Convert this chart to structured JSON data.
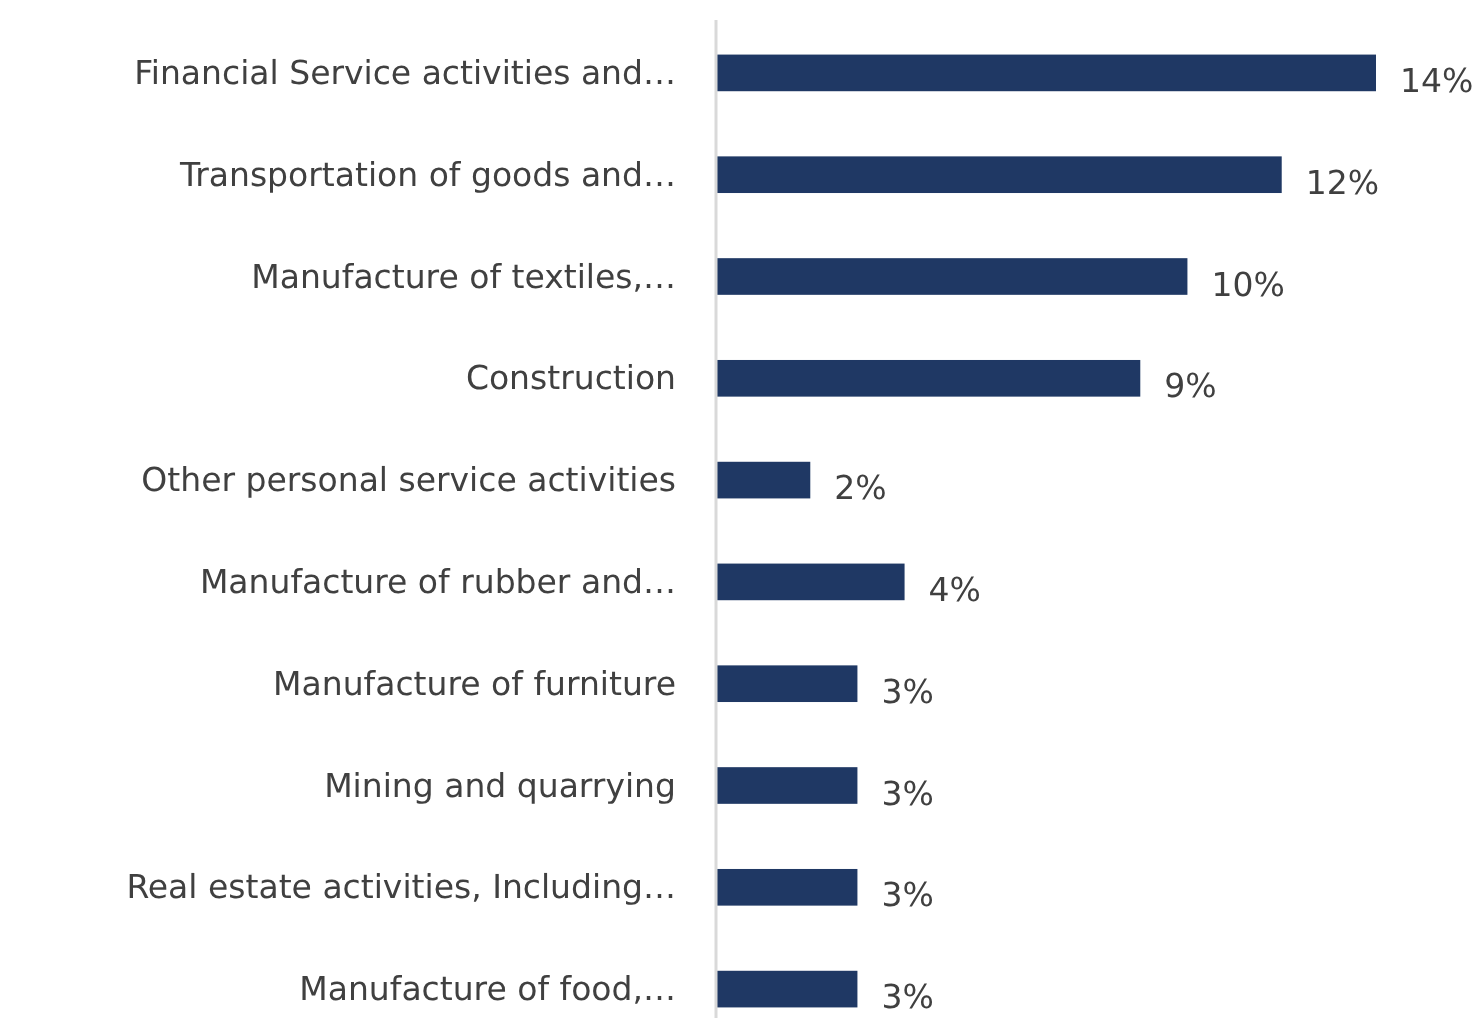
{
  "chart_data": {
    "type": "bar",
    "orientation": "horizontal",
    "categories": [
      "Financial Service activities and…",
      "Transportation of goods and…",
      "Manufacture of textiles,…",
      "Construction",
      "Other personal service activities",
      "Manufacture of rubber and…",
      "Manufacture of furniture",
      "Mining and quarrying",
      "Real estate activities, Including…",
      "Manufacture of food,…"
    ],
    "values": [
      14,
      12,
      10,
      9,
      2,
      4,
      3,
      3,
      3,
      3
    ],
    "value_labels": [
      "14%",
      "12%",
      "10%",
      "9%",
      "2%",
      "4%",
      "3%",
      "3%",
      "3%",
      "3%"
    ],
    "color": "#1f3864"
  }
}
